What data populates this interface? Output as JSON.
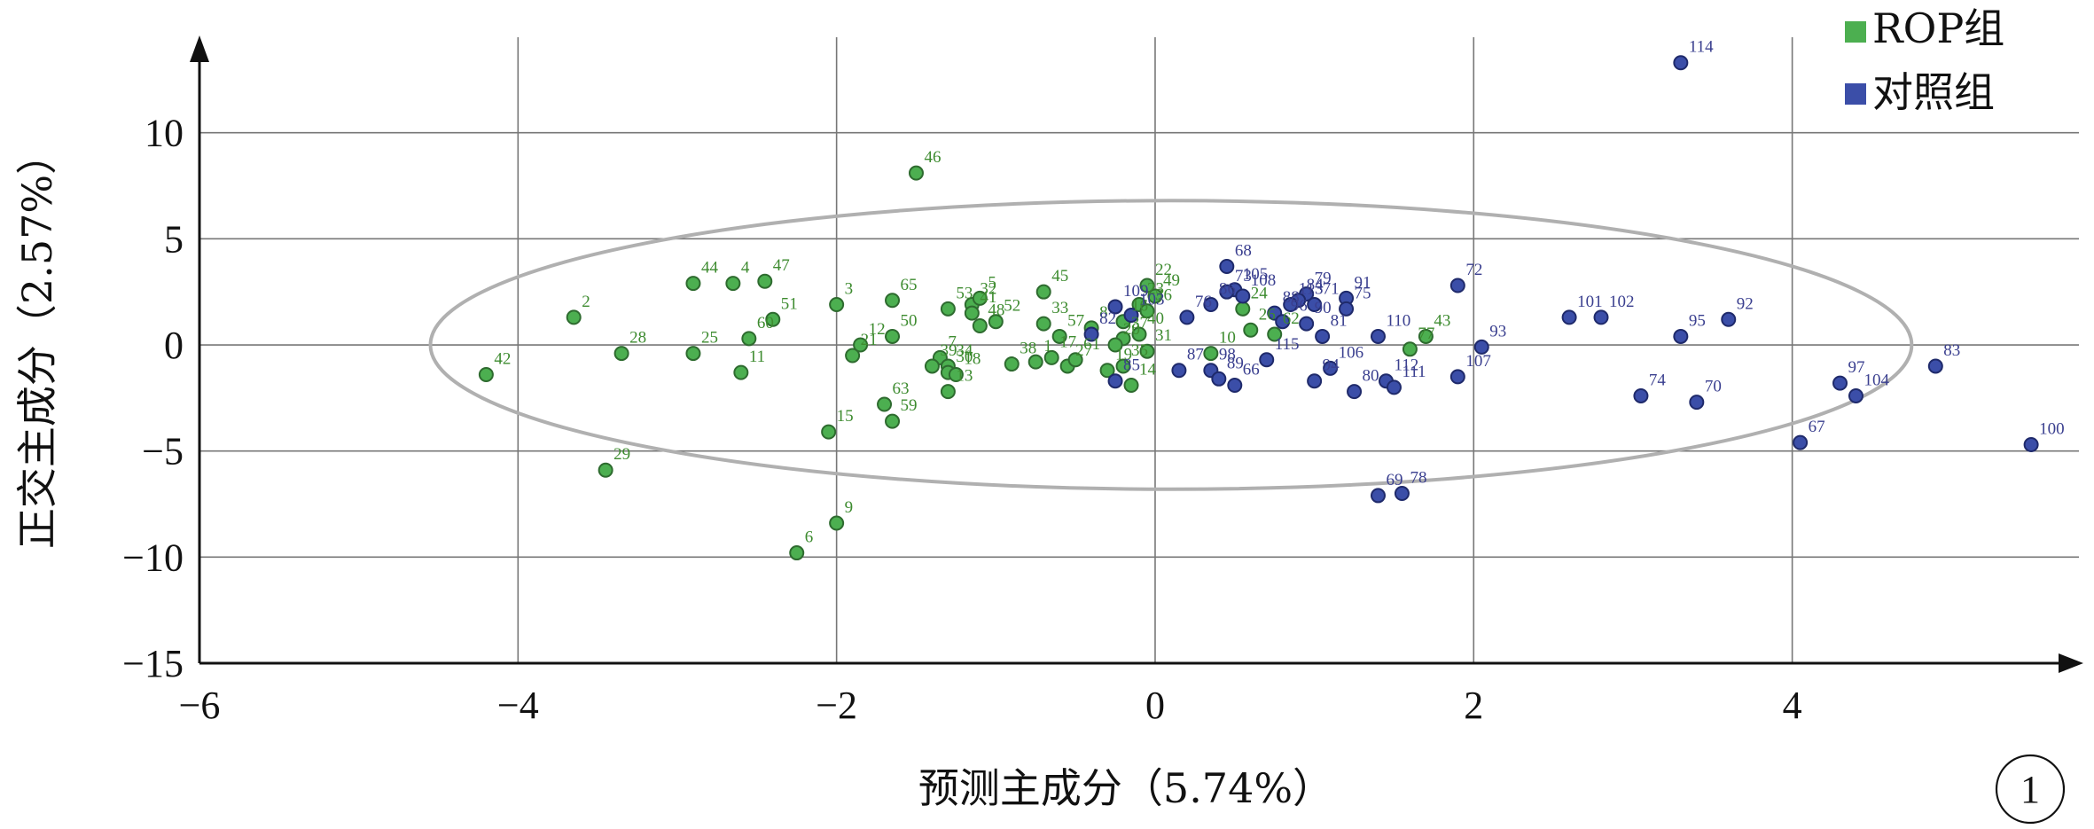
{
  "chart_data": {
    "type": "scatter",
    "xlabel": "预测主成分（5.74%）",
    "ylabel": "正交主成分（2.57%）",
    "xlim": [
      -6,
      5.8
    ],
    "ylim": [
      -15,
      14.5
    ],
    "x_ticks": [
      -6,
      -4,
      -2,
      0,
      2,
      4
    ],
    "y_ticks": [
      -15,
      -10,
      -5,
      0,
      5,
      10
    ],
    "x_tick_labels": [
      "−6",
      "−4",
      "−2",
      "0",
      "2",
      "4"
    ],
    "y_tick_labels": [
      "−15",
      "−10",
      "−5",
      "0",
      "5",
      "10"
    ],
    "grid": true,
    "legend_position": "top-right",
    "ellipse": {
      "cx": 0.1,
      "cy": 0,
      "rx": 4.65,
      "ry": 6.8
    },
    "panel_label": "1",
    "colors": {
      "rop": "#4caf50",
      "rop_edge": "#2e6b2f",
      "rop_text": "#3d8b2f",
      "control": "#3b4ea8",
      "control_edge": "#1f2a6b",
      "control_text": "#3a3f8f",
      "ellipse": "#b0b0b0",
      "grid": "#777777"
    },
    "series": [
      {
        "name": "ROP组",
        "color": "#4caf50",
        "points": [
          {
            "label": "42",
            "x": -4.2,
            "y": -1.4
          },
          {
            "label": "2",
            "x": -3.65,
            "y": 1.3
          },
          {
            "label": "28",
            "x": -3.35,
            "y": -0.4
          },
          {
            "label": "29",
            "x": -3.45,
            "y": -5.9
          },
          {
            "label": "44",
            "x": -2.9,
            "y": 2.9
          },
          {
            "label": "25",
            "x": -2.9,
            "y": -0.4
          },
          {
            "label": "4",
            "x": -2.65,
            "y": 2.9
          },
          {
            "label": "47",
            "x": -2.45,
            "y": 3.0
          },
          {
            "label": "51",
            "x": -2.4,
            "y": 1.2
          },
          {
            "label": "60",
            "x": -2.55,
            "y": 0.3
          },
          {
            "label": "11",
            "x": -2.6,
            "y": -1.3
          },
          {
            "label": "3",
            "x": -2.0,
            "y": 1.9
          },
          {
            "label": "15",
            "x": -2.05,
            "y": -4.1
          },
          {
            "label": "9",
            "x": -2.0,
            "y": -8.4
          },
          {
            "label": "6",
            "x": -2.25,
            "y": -9.8
          },
          {
            "label": "21",
            "x": -1.9,
            "y": -0.5
          },
          {
            "label": "12",
            "x": -1.85,
            "y": 0.0
          },
          {
            "label": "65",
            "x": -1.65,
            "y": 2.1
          },
          {
            "label": "50",
            "x": -1.65,
            "y": 0.4
          },
          {
            "label": "63",
            "x": -1.7,
            "y": -2.8
          },
          {
            "label": "59",
            "x": -1.65,
            "y": -3.6
          },
          {
            "label": "46",
            "x": -1.5,
            "y": 8.1
          },
          {
            "label": "53",
            "x": -1.3,
            "y": 1.7
          },
          {
            "label": "32",
            "x": -1.15,
            "y": 1.9
          },
          {
            "label": "5",
            "x": -1.1,
            "y": 2.2
          },
          {
            "label": "41",
            "x": -1.15,
            "y": 1.5
          },
          {
            "label": "52",
            "x": -1.0,
            "y": 1.1
          },
          {
            "label": "48",
            "x": -1.1,
            "y": 0.9
          },
          {
            "label": "7",
            "x": -1.35,
            "y": -0.6
          },
          {
            "label": "34",
            "x": -1.3,
            "y": -1.0
          },
          {
            "label": "39",
            "x": -1.4,
            "y": -1.0
          },
          {
            "label": "30",
            "x": -1.3,
            "y": -1.3
          },
          {
            "label": "18",
            "x": -1.25,
            "y": -1.4
          },
          {
            "label": "13",
            "x": -1.3,
            "y": -2.2
          },
          {
            "label": "45",
            "x": -0.7,
            "y": 2.5
          },
          {
            "label": "33",
            "x": -0.7,
            "y": 1.0
          },
          {
            "label": "57",
            "x": -0.6,
            "y": 0.4
          },
          {
            "label": "38",
            "x": -0.9,
            "y": -0.9
          },
          {
            "label": "1",
            "x": -0.75,
            "y": -0.8
          },
          {
            "label": "17",
            "x": -0.65,
            "y": -0.6
          },
          {
            "label": "27",
            "x": -0.55,
            "y": -1.0
          },
          {
            "label": "61",
            "x": -0.5,
            "y": -0.7
          },
          {
            "label": "8",
            "x": -0.4,
            "y": 0.8
          },
          {
            "label": "22",
            "x": -0.05,
            "y": 2.8
          },
          {
            "label": "49",
            "x": 0.0,
            "y": 2.3
          },
          {
            "label": "23",
            "x": -0.1,
            "y": 1.9
          },
          {
            "label": "36",
            "x": -0.05,
            "y": 1.6
          },
          {
            "label": "16",
            "x": -0.2,
            "y": 1.1
          },
          {
            "label": "40",
            "x": -0.1,
            "y": 0.5
          },
          {
            "label": "37",
            "x": -0.2,
            "y": 0.3
          },
          {
            "label": "20",
            "x": -0.25,
            "y": 0.0
          },
          {
            "label": "35",
            "x": -0.2,
            "y": -1.0
          },
          {
            "label": "19",
            "x": -0.3,
            "y": -1.2
          },
          {
            "label": "14",
            "x": -0.15,
            "y": -1.9
          },
          {
            "label": "31",
            "x": -0.05,
            "y": -0.3
          },
          {
            "label": "24",
            "x": 0.55,
            "y": 1.7
          },
          {
            "label": "26",
            "x": 0.6,
            "y": 0.7
          },
          {
            "label": "62",
            "x": 0.75,
            "y": 0.5
          },
          {
            "label": "10",
            "x": 0.35,
            "y": -0.4
          },
          {
            "label": "43",
            "x": 1.7,
            "y": 0.4
          },
          {
            "label": "77",
            "x": 1.6,
            "y": -0.2
          }
        ]
      },
      {
        "name": "对照组",
        "color": "#3b4ea8",
        "points": [
          {
            "label": "114",
            "x": 3.3,
            "y": 13.3
          },
          {
            "label": "68",
            "x": 0.45,
            "y": 3.7
          },
          {
            "label": "105",
            "x": 0.5,
            "y": 2.6
          },
          {
            "label": "108",
            "x": 0.55,
            "y": 2.3
          },
          {
            "label": "79",
            "x": 0.95,
            "y": 2.4
          },
          {
            "label": "84",
            "x": 0.9,
            "y": 2.1
          },
          {
            "label": "71",
            "x": 1.0,
            "y": 1.9
          },
          {
            "label": "91",
            "x": 1.2,
            "y": 2.2
          },
          {
            "label": "75",
            "x": 1.2,
            "y": 1.7
          },
          {
            "label": "113",
            "x": 0.85,
            "y": 1.9
          },
          {
            "label": "109",
            "x": -0.25,
            "y": 1.8
          },
          {
            "label": "103",
            "x": -0.15,
            "y": 1.4
          },
          {
            "label": "76",
            "x": 0.2,
            "y": 1.3
          },
          {
            "label": "86",
            "x": 0.35,
            "y": 1.9
          },
          {
            "label": "73",
            "x": 0.45,
            "y": 2.5
          },
          {
            "label": "88",
            "x": 0.75,
            "y": 1.5
          },
          {
            "label": "96",
            "x": 0.8,
            "y": 1.1
          },
          {
            "label": "90",
            "x": 0.95,
            "y": 1.0
          },
          {
            "label": "81",
            "x": 1.05,
            "y": 0.4
          },
          {
            "label": "72",
            "x": 1.9,
            "y": 2.8
          },
          {
            "label": "110",
            "x": 1.4,
            "y": 0.4
          },
          {
            "label": "82",
            "x": -0.4,
            "y": 0.5
          },
          {
            "label": "85",
            "x": -0.25,
            "y": -1.7
          },
          {
            "label": "87",
            "x": 0.15,
            "y": -1.2
          },
          {
            "label": "98",
            "x": 0.35,
            "y": -1.2
          },
          {
            "label": "89",
            "x": 0.4,
            "y": -1.6
          },
          {
            "label": "66",
            "x": 0.5,
            "y": -1.9
          },
          {
            "label": "115",
            "x": 0.7,
            "y": -0.7
          },
          {
            "label": "94",
            "x": 1.0,
            "y": -1.7
          },
          {
            "label": "106",
            "x": 1.1,
            "y": -1.1
          },
          {
            "label": "80",
            "x": 1.25,
            "y": -2.2
          },
          {
            "label": "112",
            "x": 1.45,
            "y": -1.7
          },
          {
            "label": "111",
            "x": 1.5,
            "y": -2.0
          },
          {
            "label": "107",
            "x": 1.9,
            "y": -1.5
          },
          {
            "label": "93",
            "x": 2.05,
            "y": -0.1
          },
          {
            "label": "69",
            "x": 1.4,
            "y": -7.1
          },
          {
            "label": "78",
            "x": 1.55,
            "y": -7.0
          },
          {
            "label": "101",
            "x": 2.6,
            "y": 1.3
          },
          {
            "label": "102",
            "x": 2.8,
            "y": 1.3
          },
          {
            "label": "95",
            "x": 3.3,
            "y": 0.4
          },
          {
            "label": "92",
            "x": 3.6,
            "y": 1.2
          },
          {
            "label": "74",
            "x": 3.05,
            "y": -2.4
          },
          {
            "label": "70",
            "x": 3.4,
            "y": -2.7
          },
          {
            "label": "67",
            "x": 4.05,
            "y": -4.6
          },
          {
            "label": "97",
            "x": 4.3,
            "y": -1.8
          },
          {
            "label": "104",
            "x": 4.4,
            "y": -2.4
          },
          {
            "label": "83",
            "x": 4.9,
            "y": -1.0
          },
          {
            "label": "100",
            "x": 5.5,
            "y": -4.7
          }
        ]
      }
    ]
  }
}
